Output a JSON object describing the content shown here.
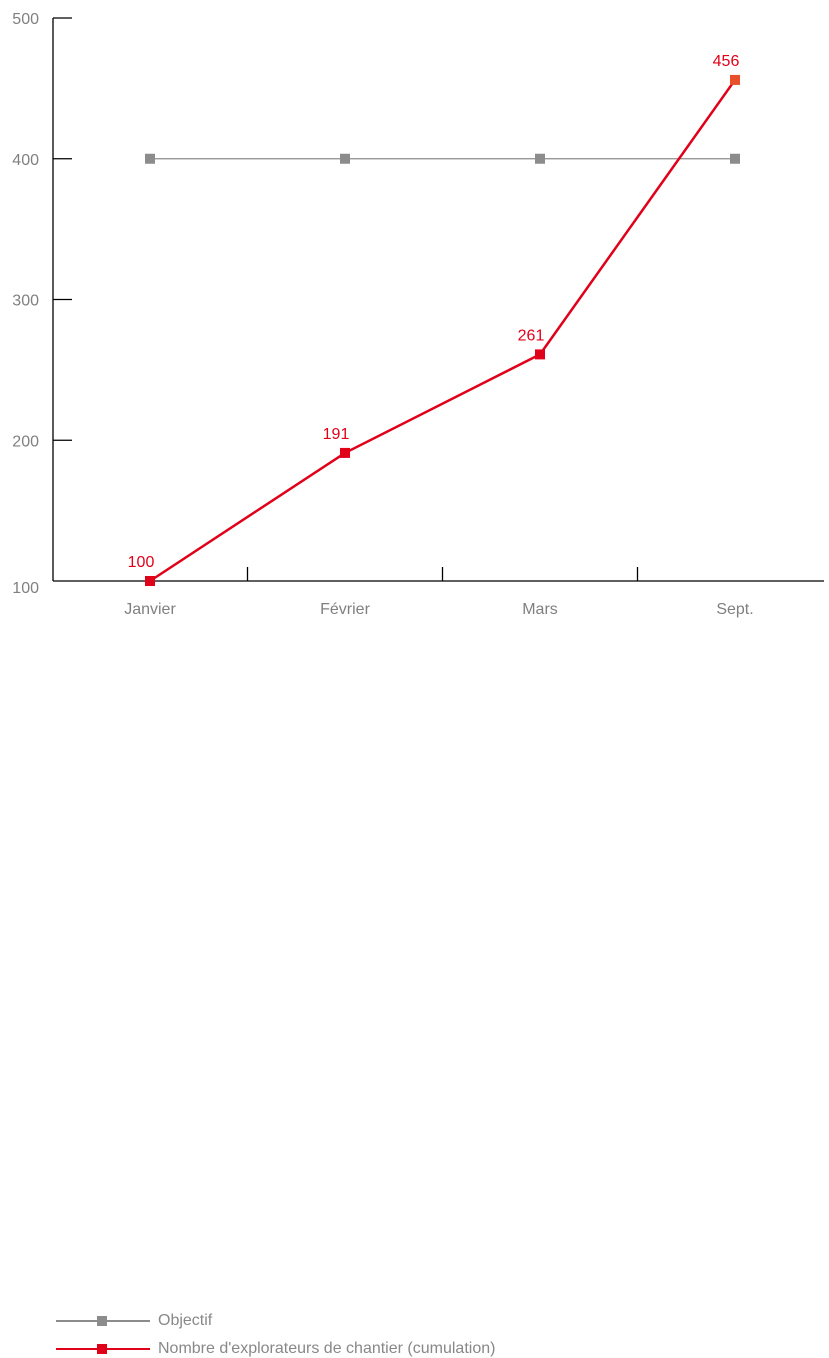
{
  "chart_data": {
    "type": "line",
    "categories": [
      "Janvier",
      "Février",
      "Mars",
      "Sept."
    ],
    "ylim": [
      100,
      500
    ],
    "yticks": [
      "100",
      "200",
      "300",
      "400",
      "500"
    ],
    "grid": false,
    "legend_position": "bottom-left",
    "series": [
      {
        "name": "Objectif",
        "values": [
          400,
          400,
          400,
          400
        ],
        "color": "#8c8c8c",
        "show_labels": false
      },
      {
        "name": "Nombre d'explorateurs de chantier (cumulation)",
        "values": [
          100,
          191,
          261,
          456
        ],
        "labels": [
          "100",
          "191",
          "261",
          "456"
        ],
        "color": "#e1001a",
        "last_marker_color": "#e8502a",
        "show_labels": true
      }
    ]
  },
  "colors": {
    "axis": "#000000",
    "tick_text": "#808080",
    "label_text": "#e1001a"
  }
}
